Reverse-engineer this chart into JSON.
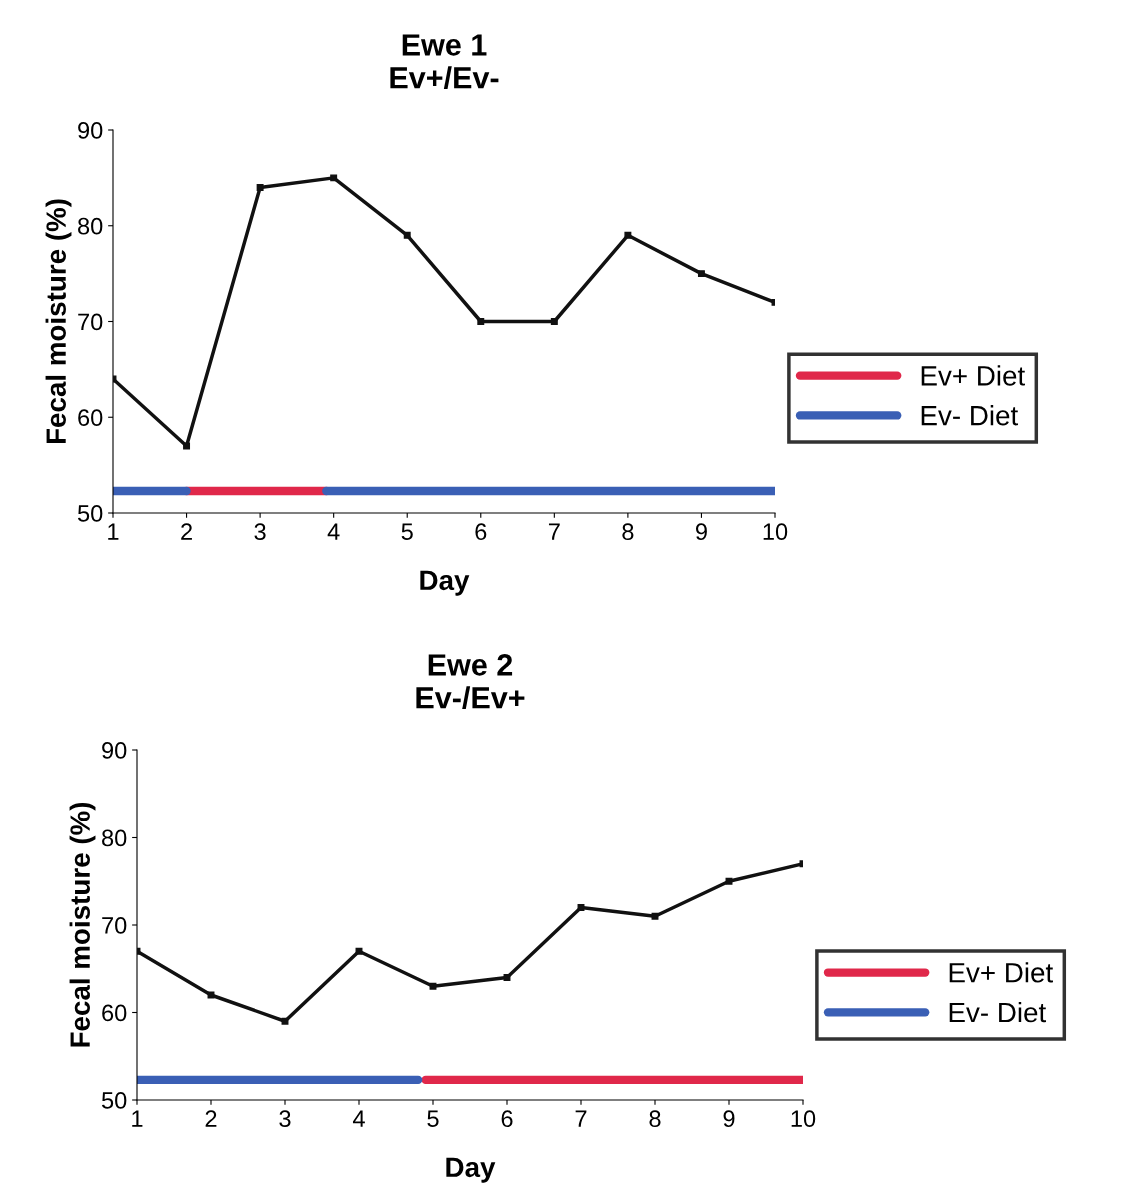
{
  "chart_data": [
    {
      "type": "line",
      "title": "Ewe 1",
      "subtitle": "Ev+/Ev-",
      "xlabel": "Day",
      "ylabel": "Fecal moisture (%)",
      "x": [
        1,
        2,
        3,
        4,
        5,
        6,
        7,
        8,
        9,
        10
      ],
      "xlim": [
        1,
        10
      ],
      "xticks": [
        1,
        2,
        3,
        4,
        5,
        6,
        7,
        8,
        9,
        10
      ],
      "ylim": [
        50,
        90
      ],
      "yticks": [
        50,
        60,
        70,
        80,
        90
      ],
      "legend": "right",
      "series": [
        {
          "color": "#111111",
          "marker": "square",
          "values": [
            64,
            57,
            84,
            85,
            79,
            70,
            70,
            79,
            75,
            72
          ]
        },
        {
          "name": "Ev+ Diet",
          "color": "#e0284a",
          "marker": "none",
          "x": [
            2,
            3.9
          ],
          "values": [
            52.3,
            52.3
          ]
        },
        {
          "name": "Ev- Diet",
          "color": "#3a5fb5",
          "marker": "none",
          "x": [
            1,
            2,
            3,
            3.9,
            10
          ],
          "values": [
            52.3,
            52.3,
            null,
            52.3,
            52.3
          ]
        }
      ]
    },
    {
      "type": "line",
      "title": "Ewe 2",
      "subtitle": "Ev-/Ev+",
      "xlabel": "Day",
      "ylabel": "Fecal moisture (%)",
      "x": [
        1,
        2,
        3,
        4,
        5,
        6,
        7,
        8,
        9,
        10
      ],
      "xlim": [
        1,
        10
      ],
      "xticks": [
        1,
        2,
        3,
        4,
        5,
        6,
        7,
        8,
        9,
        10
      ],
      "ylim": [
        50,
        90
      ],
      "yticks": [
        50,
        60,
        70,
        80,
        90
      ],
      "legend": "right",
      "series": [
        {
          "color": "#111111",
          "marker": "square",
          "values": [
            67,
            62,
            59,
            67,
            63,
            64,
            72,
            71,
            75,
            77
          ]
        },
        {
          "name": "Ev+ Diet",
          "color": "#e0284a",
          "marker": "none",
          "x": [
            4.9,
            10
          ],
          "values": [
            52.3,
            52.3
          ]
        },
        {
          "name": "Ev- Diet",
          "color": "#3a5fb5",
          "marker": "none",
          "x": [
            1,
            4.8
          ],
          "values": [
            52.3,
            52.3
          ]
        }
      ]
    }
  ]
}
